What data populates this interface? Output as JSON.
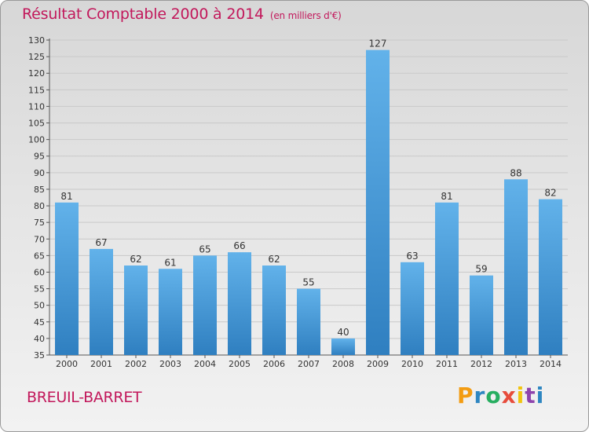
{
  "title": "Résultat Comptable 2000 à 2014",
  "unit": "(en milliers d'€)",
  "city": "BREUIL-BARRET",
  "brand": {
    "letters": [
      "P",
      "r",
      "o",
      "x",
      "i",
      "t",
      "i"
    ],
    "colors": [
      "#f39c12",
      "#2e86c1",
      "#27ae60",
      "#e74c3c",
      "#f1c40f",
      "#8e44ad",
      "#2e86c1"
    ]
  },
  "colors": {
    "accent": "#c2185b",
    "bar_light": "#62b2ea",
    "bar_dark": "#2f7fc0",
    "grid": "#c9c9c9"
  },
  "chart_data": {
    "type": "bar",
    "title": "Résultat Comptable 2000 à 2014",
    "xlabel": "",
    "ylabel": "en milliers d'€",
    "ylim": [
      35,
      130
    ],
    "ytick_step": 5,
    "grid": true,
    "categories": [
      "2000",
      "2001",
      "2002",
      "2003",
      "2004",
      "2005",
      "2006",
      "2007",
      "2008",
      "2009",
      "2010",
      "2011",
      "2012",
      "2013",
      "2014"
    ],
    "values": [
      81,
      67,
      62,
      61,
      65,
      66,
      62,
      55,
      40,
      127,
      63,
      81,
      59,
      88,
      82
    ]
  }
}
